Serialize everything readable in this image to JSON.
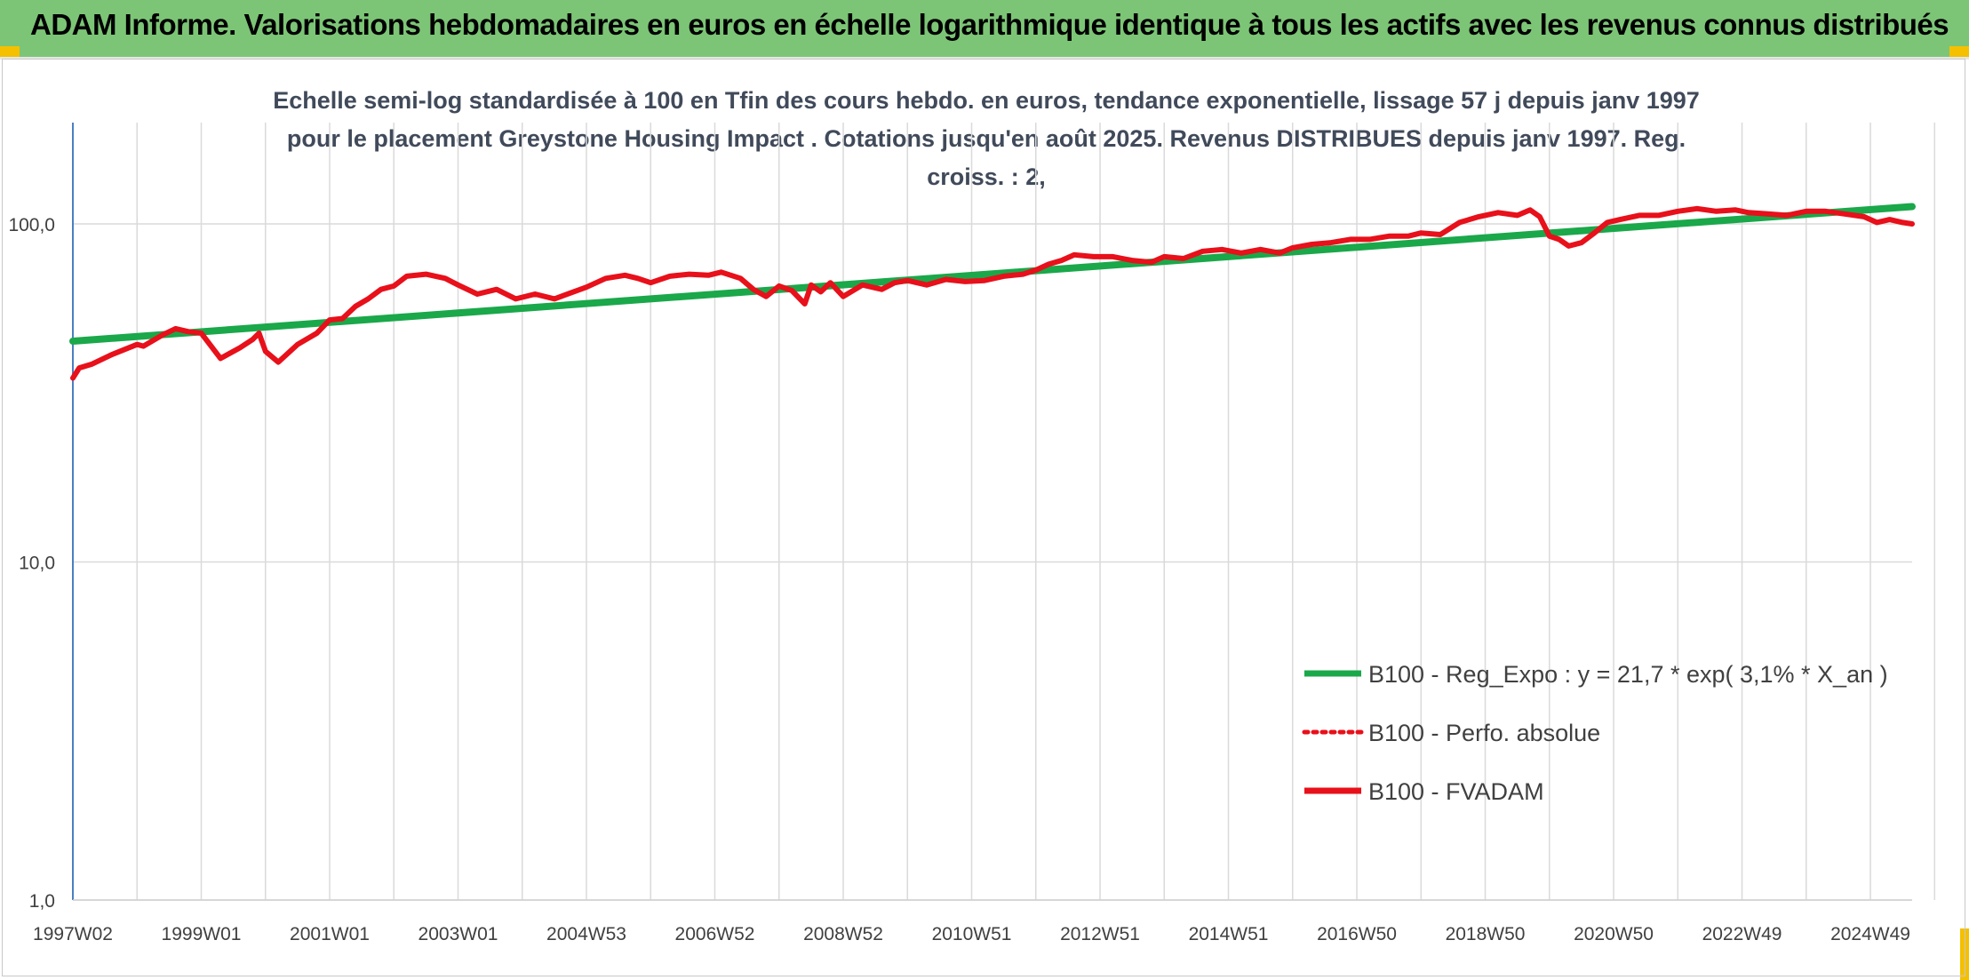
{
  "banner": {
    "title": "ADAM Informe. Valorisations hebdomadaires en euros en échelle logarithmique identique à tous les actifs avec les revenus connus distribués"
  },
  "colors": {
    "banner_bg": "#7cc576",
    "regression_line": "#1aa84a",
    "fvadam_line": "#e8101a",
    "perfo_line": "#e8101a",
    "corner_marker": "#f4c000"
  },
  "chart_data": {
    "type": "line",
    "title": "Echelle semi-log standardisée à 100 en Tfin des cours hebdo. en euros, tendance exponentielle, lissage 57 j depuis janv 1997 pour le placement Greystone Housing Impact . Cotations jusqu'en août 2025. Revenus DISTRIBUES depuis janv 1997. Reg. croiss. : 2,",
    "y_scale": "log",
    "ylim": [
      1,
      100
    ],
    "yticks": [
      1,
      10,
      100
    ],
    "ytick_labels": [
      "1,0",
      "10,0",
      "100,0"
    ],
    "xlim": [
      1997.0,
      2025.65
    ],
    "xticks": [
      1997.0,
      1999.0,
      2001.0,
      2003.0,
      2005.0,
      2007.0,
      2009.0,
      2011.0,
      2013.0,
      2015.0,
      2017.0,
      2019.0,
      2021.0,
      2023.0,
      2025.0
    ],
    "xtick_labels": [
      "1997W02",
      "1999W01",
      "2001W01",
      "2003W01",
      "2004W53",
      "2006W52",
      "2008W52",
      "2010W51",
      "2012W51",
      "2014W51",
      "2016W50",
      "2018W50",
      "2020W50",
      "2022W49",
      "2024W49"
    ],
    "grid": true,
    "legend_position": "bottom-right",
    "series": [
      {
        "name": "B100 - Reg_Expo : y = 21,7 * exp( 3,1% *  X_an )",
        "style": "solid",
        "x": [
          1997.0,
          2025.65
        ],
        "y": [
          45.0,
          112.5
        ]
      },
      {
        "name": "B100 - Perfo. absolue",
        "style": "dotted",
        "x": [],
        "y": []
      },
      {
        "name": "B100 - FVADAM",
        "style": "solid",
        "x": [
          1997.0,
          1997.1,
          1997.3,
          1997.6,
          1998.0,
          1998.1,
          1998.4,
          1998.6,
          1998.8,
          1999.0,
          1999.3,
          1999.6,
          1999.8,
          1999.9,
          2000.0,
          2000.2,
          2000.5,
          2000.8,
          2001.0,
          2001.2,
          2001.4,
          2001.6,
          2001.8,
          2002.0,
          2002.2,
          2002.5,
          2002.8,
          2003.0,
          2003.3,
          2003.6,
          2003.9,
          2004.2,
          2004.5,
          2004.8,
          2005.0,
          2005.3,
          2005.6,
          2005.8,
          2006.0,
          2006.3,
          2006.6,
          2006.9,
          2007.1,
          2007.4,
          2007.6,
          2007.8,
          2008.0,
          2008.2,
          2008.4,
          2008.5,
          2008.65,
          2008.8,
          2009.0,
          2009.3,
          2009.6,
          2009.8,
          2010.0,
          2010.3,
          2010.6,
          2010.9,
          2011.2,
          2011.5,
          2011.8,
          2012.0,
          2012.2,
          2012.4,
          2012.6,
          2012.9,
          2013.2,
          2013.5,
          2013.8,
          2014.0,
          2014.3,
          2014.6,
          2014.9,
          2015.2,
          2015.5,
          2015.8,
          2016.0,
          2016.3,
          2016.6,
          2016.9,
          2017.2,
          2017.5,
          2017.8,
          2018.0,
          2018.3,
          2018.6,
          2018.9,
          2019.2,
          2019.5,
          2019.7,
          2019.85,
          2020.0,
          2020.15,
          2020.3,
          2020.5,
          2020.7,
          2020.9,
          2021.1,
          2021.4,
          2021.7,
          2022.0,
          2022.3,
          2022.6,
          2022.9,
          2023.1,
          2023.4,
          2023.7,
          2024.0,
          2024.3,
          2024.6,
          2024.9,
          2025.1,
          2025.3,
          2025.5,
          2025.65
        ],
        "y": [
          35,
          37.5,
          38.5,
          41,
          44,
          43.5,
          47,
          49,
          48,
          47.5,
          40,
          43,
          45.5,
          47.5,
          42,
          39,
          44,
          47.5,
          52,
          52.5,
          57,
          60,
          64,
          65.5,
          70,
          71,
          69,
          66,
          62,
          64,
          60,
          62,
          60,
          63,
          65,
          69,
          70.5,
          69,
          67,
          70,
          71,
          70.5,
          72,
          69,
          64,
          61,
          65.5,
          63.5,
          58,
          66,
          63,
          67,
          61,
          66,
          64,
          67,
          68,
          66,
          68.5,
          67.5,
          68,
          70,
          71,
          73,
          76,
          78,
          81,
          80,
          80,
          78,
          77,
          80,
          79,
          83,
          84,
          82,
          84,
          82,
          85,
          87,
          88,
          90,
          90,
          92,
          92,
          94,
          93,
          101,
          105,
          108,
          106,
          110,
          105,
          92,
          90,
          86,
          88,
          94,
          101,
          103,
          106,
          106,
          109,
          111,
          109,
          110,
          108,
          107,
          106,
          109,
          109,
          107,
          105,
          101,
          103,
          101,
          100
        ]
      }
    ]
  }
}
